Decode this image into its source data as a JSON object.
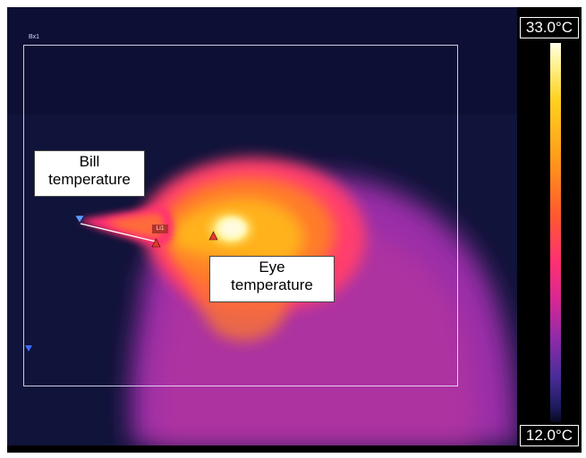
{
  "image": {
    "subject": "thermal-image-bird-head",
    "palette": "ironbow"
  },
  "overlays": {
    "box_label": "Bx1",
    "line_label": "Li1",
    "bill_callout": {
      "line1": "Bill",
      "line2": "temperature"
    },
    "eye_callout": {
      "line1": "Eye",
      "line2": "temperature"
    }
  },
  "scale": {
    "max": "33.0°C",
    "min": "12.0°C"
  },
  "colors": {
    "background": "#10133a",
    "hot": "#fff7c0",
    "warm": "#ffb21c",
    "mid": "#ff4a52",
    "cool": "#b8299c"
  }
}
